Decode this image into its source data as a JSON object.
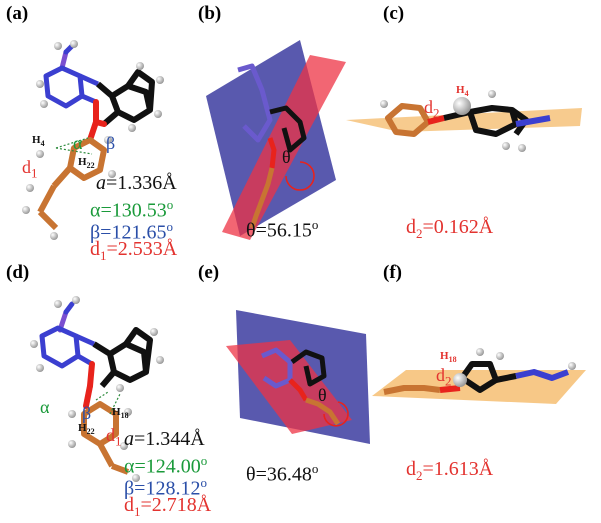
{
  "panels": {
    "a": {
      "label": "(a)",
      "a_value": "=1.336Å",
      "alpha_value": "α=130.53",
      "beta_value": "β=121.65",
      "d1_value": "=2.533Å",
      "h_a": "H",
      "h_a_sub": "4",
      "h_b": "H",
      "h_b_sub": "22",
      "alpha_glyph": "α",
      "beta_glyph": "β",
      "d_glyph": "d",
      "d_sub": "1"
    },
    "b": {
      "label": "(b)",
      "theta_value": "θ=56.15",
      "theta_glyph": "θ"
    },
    "c": {
      "label": "(c)",
      "d2_value": "=0.162Å",
      "h_atom": "H",
      "h_atom_sub": "4",
      "d_glyph": "d",
      "d_sub": "2"
    },
    "d": {
      "label": "(d)",
      "a_value": "=1.344Å",
      "alpha_value": "α=124.00",
      "beta_value": "β=128.12",
      "d1_value": "=2.718Å",
      "h_a": "H",
      "h_a_sub": "18",
      "h_b": "H",
      "h_b_sub": "22",
      "alpha_glyph": "α",
      "beta_glyph": "β",
      "d_glyph": "d",
      "d_sub": "1"
    },
    "e": {
      "label": "(e)",
      "theta_value": "θ=36.48",
      "theta_glyph": "θ"
    },
    "f": {
      "label": "(f)",
      "d2_value": "=1.613Å",
      "h_atom": "H",
      "h_atom_sub": "18",
      "d_glyph": "d",
      "d_sub": "2"
    }
  },
  "symbols": {
    "a": "a",
    "d": "d",
    "sub1": "1",
    "sub2": "2",
    "degree": "o"
  },
  "colors": {
    "carbon_phenyl": "#c87432",
    "carbon_frame": "#111111",
    "nitrogen_ring": "#3b3fd0",
    "oxygen": "#e8231c",
    "hydrogen": "#c8c8c8",
    "plane_blue": "#3c3ca0",
    "plane_red": "#ee3344",
    "plane_orange": "#f6c27a"
  }
}
